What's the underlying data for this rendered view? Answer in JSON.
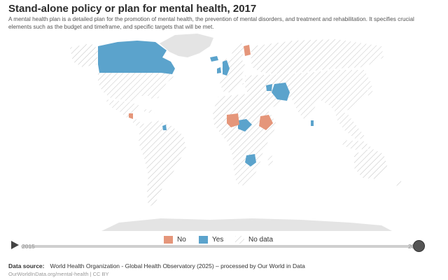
{
  "header": {
    "title": "Stand-alone policy or plan for mental health, 2017",
    "subtitle": "A mental health plan is a detailed plan for the promotion of mental health, the prevention of mental disorders, and treatment and rehabilitation. It specifies crucial elements such as the budget and timeframe, and specific targets that will be met."
  },
  "colors": {
    "no": "#e5967a",
    "yes": "#5ba3cc",
    "no_data_hatch": "#c4c4c4",
    "land_grey": "#e4e4e4"
  },
  "map_regions": [
    {
      "name": "canada",
      "status": "Yes"
    },
    {
      "name": "united-states",
      "status": "No data"
    },
    {
      "name": "mexico",
      "status": "No data"
    },
    {
      "name": "greenland",
      "status": "No data"
    },
    {
      "name": "guatemala",
      "status": "No"
    },
    {
      "name": "south-america",
      "status": "No data"
    },
    {
      "name": "iceland",
      "status": "Yes"
    },
    {
      "name": "ireland",
      "status": "Yes"
    },
    {
      "name": "united-kingdom",
      "status": "Yes"
    },
    {
      "name": "finland",
      "status": "No"
    },
    {
      "name": "russia",
      "status": "No data"
    },
    {
      "name": "iran",
      "status": "Yes"
    },
    {
      "name": "nigeria",
      "status": "No"
    },
    {
      "name": "cameroon",
      "status": "Yes"
    },
    {
      "name": "ethiopia",
      "status": "No"
    },
    {
      "name": "zambia",
      "status": "Yes"
    },
    {
      "name": "malawi",
      "status": "Yes"
    },
    {
      "name": "sri-lanka",
      "status": "Yes"
    },
    {
      "name": "australia",
      "status": "No data"
    },
    {
      "name": "antarctica",
      "status": "No data"
    }
  ],
  "legend": {
    "items": [
      {
        "key": "no",
        "label": "No"
      },
      {
        "key": "yes",
        "label": "Yes"
      },
      {
        "key": "no_data",
        "label": "No data"
      }
    ]
  },
  "timeline": {
    "start_year": "2015",
    "end_year": "2017",
    "selected_year": "2017"
  },
  "footer": {
    "source_label": "Data source:",
    "source_text": "World Health Organization - Global Health Observatory (2025) – processed by Our World in Data",
    "link": "OurWorldInData.org/mental-health | CC BY"
  }
}
